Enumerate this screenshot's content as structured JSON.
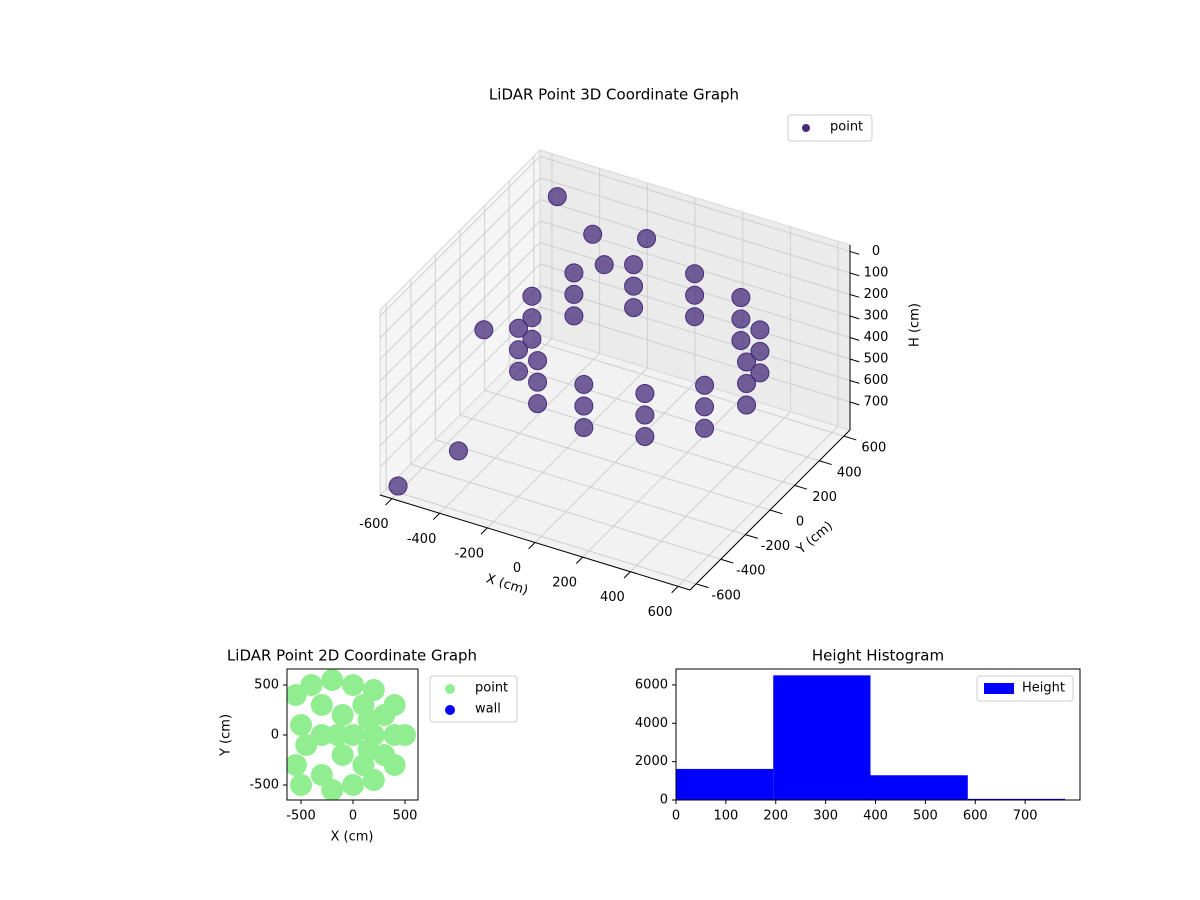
{
  "chart_data": [
    {
      "type": "scatter3d",
      "title": "LiDAR Point 3D Coordinate Graph",
      "xlabel": "X (cm)",
      "ylabel": "Y (cm)",
      "zlabel": "H (cm)",
      "xlim": [
        -650,
        650
      ],
      "ylim": [
        -650,
        650
      ],
      "zlim": [
        -30,
        830
      ],
      "z_inverted": true,
      "xticks": [
        -600,
        -400,
        -200,
        0,
        200,
        400,
        600
      ],
      "yticks": [
        -600,
        -400,
        -200,
        0,
        200,
        400,
        600
      ],
      "zticks": [
        0,
        100,
        200,
        300,
        400,
        500,
        600,
        700
      ],
      "grid": true,
      "legend": "upper right",
      "series": [
        {
          "name": "point",
          "color": "#472c7a",
          "x": [
            500,
            440,
            275,
            50,
            -175,
            -340,
            -400,
            -340,
            -175,
            50,
            275,
            440,
            500,
            440,
            275,
            50,
            -175,
            -340,
            -400,
            -340,
            -175,
            50,
            275,
            440,
            500,
            440,
            275,
            50,
            -175,
            -340,
            -400,
            -340,
            -175,
            50,
            275,
            440,
            -600,
            -500,
            -300,
            -200,
            -450,
            -550,
            -100
          ],
          "y": [
            100,
            325,
            490,
            550,
            490,
            325,
            100,
            -125,
            -290,
            -350,
            -290,
            -125,
            100,
            325,
            490,
            550,
            490,
            325,
            100,
            -125,
            -290,
            -350,
            -290,
            -125,
            100,
            325,
            490,
            550,
            490,
            325,
            100,
            -125,
            -290,
            -350,
            -290,
            -125,
            -600,
            500,
            400,
            300,
            -400,
            0,
            450
          ],
          "z": [
            250,
            250,
            250,
            250,
            250,
            250,
            250,
            250,
            250,
            250,
            250,
            250,
            350,
            350,
            350,
            350,
            350,
            350,
            350,
            350,
            350,
            350,
            350,
            350,
            450,
            450,
            450,
            450,
            450,
            450,
            450,
            450,
            450,
            450,
            450,
            450,
            800,
            50,
            100,
            150,
            700,
            400,
            80
          ]
        }
      ]
    },
    {
      "type": "scatter",
      "title": "LiDAR Point 2D Coordinate Graph",
      "xlabel": "X (cm)",
      "ylabel": "Y (cm)",
      "xlim": [
        -635,
        625
      ],
      "ylim": [
        -650,
        660
      ],
      "xticks": [
        -500,
        0,
        500
      ],
      "yticks": [
        -500,
        0,
        500
      ],
      "legend": "outside right",
      "series": [
        {
          "name": "point",
          "color": "#90ee90",
          "x": [
            -550,
            -550,
            -500,
            -450,
            -400,
            -300,
            -300,
            -300,
            -200,
            -200,
            -100,
            -100,
            0,
            0,
            0,
            100,
            100,
            200,
            200,
            200,
            300,
            300,
            400,
            400,
            400,
            500,
            -500,
            -150,
            150,
            150
          ],
          "y": [
            -300,
            400,
            100,
            -100,
            500,
            0,
            300,
            -400,
            550,
            -550,
            200,
            -200,
            0,
            500,
            -500,
            300,
            -300,
            0,
            450,
            -450,
            200,
            -200,
            0,
            300,
            -300,
            0,
            -500,
            0,
            150,
            -150
          ]
        },
        {
          "name": "wall",
          "color": "#0000ff",
          "x": [],
          "y": []
        }
      ]
    },
    {
      "type": "histogram",
      "title": "Height Histogram",
      "bins": [
        0,
        195,
        390,
        585,
        780
      ],
      "values": [
        1620,
        6500,
        1290,
        60
      ],
      "series_name": "Height",
      "color": "#0000ff",
      "xlim": [
        0,
        810
      ],
      "ylim": [
        0,
        6830
      ],
      "xticks": [
        0,
        100,
        200,
        300,
        400,
        500,
        600,
        700
      ],
      "yticks": [
        0,
        2000,
        4000,
        6000
      ],
      "legend": "upper right"
    }
  ]
}
